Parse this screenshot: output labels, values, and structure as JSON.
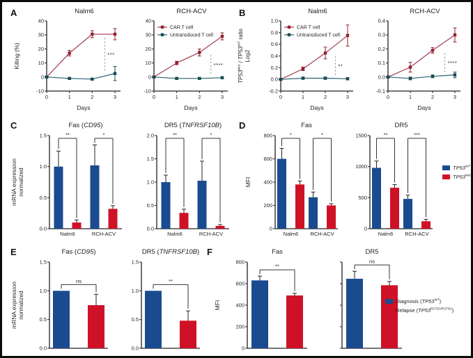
{
  "figure": {
    "background": "#ffffff",
    "border_color": "#0c0c0c"
  },
  "colors": {
    "car_line": "#a23a4e",
    "car_marker": "#96202f",
    "ut_line": "#27616f",
    "ut_marker": "#1a4a57",
    "bar_blue": "#1a4b8f",
    "bar_red": "#cf1127",
    "axis": "#231f20",
    "sig_dash": "#9a9a9a"
  },
  "panels": {
    "A": {
      "label": "A",
      "ylabel": "Killing (%)"
    },
    "B": {
      "label": "B",
      "ylabel": "*TP53*^{Mut} / *TP53*^{WT} ratio\nLog2"
    },
    "C": {
      "label": "C",
      "ylabel": "mRNA expression\nnormalized"
    },
    "D": {
      "label": "D",
      "ylabel": "MFI",
      "legend": {
        "items": [
          {
            "color_key": "bar_blue",
            "label": "*TP53*^{WT}"
          },
          {
            "color_key": "bar_red",
            "label": "*TP53*^{Mut}"
          }
        ]
      }
    },
    "E": {
      "label": "E",
      "ylabel": "mRNA expression\nnormalized"
    },
    "F": {
      "label": "F",
      "ylabel": "MFI",
      "legend": {
        "items": [
          {
            "color_key": "bar_blue",
            "label": "Diagnosis (*TP53*^{WT})"
          },
          {
            "color_key": "bar_red",
            "label": "Relapse (*TP53*^{R273G/R273G})"
          }
        ]
      }
    }
  },
  "chart_data": [
    {
      "panel": "A",
      "type": "line",
      "title": "Nalm6",
      "xlabel": "Days",
      "x": [
        0,
        1,
        2,
        3
      ],
      "xtick_labels": [
        "0",
        "1",
        "2",
        "3"
      ],
      "ylim": [
        -10,
        40
      ],
      "ytick_vals": [
        -10,
        0,
        10,
        20,
        30,
        40
      ],
      "ytick_labels": [
        "-10",
        "0",
        "10",
        "20",
        "30",
        "40"
      ],
      "legend": false,
      "series": [
        {
          "name": "CAR T cell",
          "color_key": "car",
          "values": [
            0,
            17,
            30.5,
            30.5
          ],
          "errors": [
            0.5,
            2,
            2.5,
            4
          ]
        },
        {
          "name": "Untransduced T cell",
          "color_key": "ut",
          "values": [
            0,
            -1,
            -1.5,
            2.5
          ],
          "errors": [
            0.3,
            0.6,
            0.6,
            5
          ]
        }
      ],
      "sig": {
        "x": 2.55,
        "y_top": 28,
        "y_bottom": 4,
        "label": "***"
      }
    },
    {
      "panel": "A",
      "type": "line",
      "title": "RCH-ACV",
      "xlabel": "Days",
      "x": [
        0,
        1,
        2,
        3
      ],
      "xtick_labels": [
        "0",
        "1",
        "2",
        "3"
      ],
      "ylim": [
        -10,
        40
      ],
      "ytick_vals": [
        -10,
        0,
        10,
        20,
        30,
        40
      ],
      "ytick_labels": [
        "-10",
        "0",
        "10",
        "20",
        "30",
        "40"
      ],
      "legend": true,
      "series": [
        {
          "name": "CAR T cell",
          "color_key": "car",
          "values": [
            0,
            10,
            17.5,
            29
          ],
          "errors": [
            0.5,
            1.2,
            2.5,
            2.5
          ]
        },
        {
          "name": "Untransduced T cell",
          "color_key": "ut",
          "values": [
            0,
            -1,
            -1,
            -0.5
          ],
          "errors": [
            0.3,
            0.5,
            0.5,
            0.8
          ]
        }
      ],
      "sig": {
        "x": 2.5,
        "y_top": 16,
        "y_bottom": 1,
        "label": "****"
      }
    },
    {
      "panel": "B",
      "type": "line",
      "title": "Nalm6",
      "xlabel": "Days",
      "x": [
        0,
        1,
        2,
        3
      ],
      "xtick_labels": [
        "0",
        "1",
        "2",
        "3"
      ],
      "ylim": [
        -0.2,
        1.0
      ],
      "ytick_vals": [
        -0.2,
        0.0,
        0.2,
        0.4,
        0.6,
        0.8,
        1.0
      ],
      "ytick_labels": [
        "-0.2",
        "0.0",
        "0.2",
        "0.4",
        "0.6",
        "0.8",
        "1.0"
      ],
      "legend": true,
      "series": [
        {
          "name": "CAR T cell",
          "color_key": "car",
          "values": [
            0,
            0.18,
            0.45,
            0.75
          ],
          "errors": [
            0.01,
            0.03,
            0.1,
            0.18
          ]
        },
        {
          "name": "Untransduced T cell",
          "color_key": "ut",
          "values": [
            0,
            0.02,
            0.02,
            0.01
          ],
          "errors": [
            0.005,
            0.02,
            0.02,
            0.02
          ]
        }
      ],
      "sig": {
        "x": 2.45,
        "y_top": 0.4,
        "y_bottom": 0.06,
        "label": "**"
      }
    },
    {
      "panel": "B",
      "type": "line",
      "title": "RCH-ACV",
      "xlabel": "Days",
      "x": [
        0,
        1,
        2,
        3
      ],
      "xtick_labels": [
        "0",
        "1",
        "2",
        "3"
      ],
      "ylim": [
        -0.1,
        0.4
      ],
      "ytick_vals": [
        -0.1,
        0.0,
        0.1,
        0.2,
        0.3,
        0.4
      ],
      "ytick_labels": [
        "-0.1",
        "0.0",
        "0.1",
        "0.2",
        "0.3",
        "0.4"
      ],
      "legend": false,
      "series": [
        {
          "name": "CAR T cell",
          "color_key": "car",
          "values": [
            0,
            0.07,
            0.19,
            0.3
          ],
          "errors": [
            0.005,
            0.035,
            0.02,
            0.05
          ]
        },
        {
          "name": "Untransduced T cell",
          "color_key": "ut",
          "values": [
            0,
            -0.01,
            0.005,
            0.015
          ],
          "errors": [
            0.005,
            0.01,
            0.01,
            0.02
          ]
        }
      ],
      "sig": {
        "x": 2.55,
        "y_top": 0.17,
        "y_bottom": 0.03,
        "label": "****"
      }
    },
    {
      "panel": "C",
      "type": "bar",
      "title": "Fas (*CD95*)",
      "categories": [
        "Nalm6",
        "RCH-ACV"
      ],
      "ylim": [
        0,
        1.5
      ],
      "ytick_vals": [
        0.0,
        0.5,
        1.0,
        1.5
      ],
      "ytick_labels": [
        "0.0",
        "0.5",
        "1.0",
        "1.5"
      ],
      "series": [
        {
          "color_key": "bar_blue",
          "values": [
            1.0,
            1.02
          ],
          "errors": [
            0.25,
            0.33
          ]
        },
        {
          "color_key": "bar_red",
          "values": [
            0.1,
            0.32
          ],
          "errors": [
            0.04,
            0.05
          ]
        }
      ],
      "sig": [
        {
          "label": "**"
        },
        {
          "label": "*"
        }
      ]
    },
    {
      "panel": "C",
      "type": "bar",
      "title": "DR5 (*TNFRSF10B*)",
      "categories": [
        "Nalm6",
        "RCH-ACV"
      ],
      "ylim": [
        0,
        2.0
      ],
      "ytick_vals": [
        0.0,
        0.5,
        1.0,
        1.5,
        2.0
      ],
      "ytick_labels": [
        "0.0",
        "0.5",
        "1.0",
        "1.5",
        "2.0"
      ],
      "series": [
        {
          "color_key": "bar_blue",
          "values": [
            1.0,
            1.03
          ],
          "errors": [
            0.15,
            0.42
          ]
        },
        {
          "color_key": "bar_red",
          "values": [
            0.34,
            0.06
          ],
          "errors": [
            0.08,
            0.03
          ]
        }
      ],
      "sig": [
        {
          "label": "**"
        },
        {
          "label": "*"
        }
      ]
    },
    {
      "panel": "D",
      "type": "bar",
      "title": "Fas",
      "categories": [
        "Nalm6",
        "RCH-ACV"
      ],
      "ylim": [
        0,
        800
      ],
      "ytick_vals": [
        0,
        200,
        400,
        600,
        800
      ],
      "ytick_labels": [
        "0",
        "200",
        "400",
        "600",
        "800"
      ],
      "series": [
        {
          "color_key": "bar_blue",
          "values": [
            600,
            270
          ],
          "errors": [
            90,
            45
          ]
        },
        {
          "color_key": "bar_red",
          "values": [
            380,
            200
          ],
          "errors": [
            30,
            15
          ]
        }
      ],
      "sig": [
        {
          "label": "*"
        },
        {
          "label": "*"
        }
      ]
    },
    {
      "panel": "D",
      "type": "bar",
      "title": "DR5",
      "categories": [
        "Nalm6",
        "RCH-ACV"
      ],
      "ylim": [
        0,
        1500
      ],
      "ytick_vals": [
        0,
        500,
        1000,
        1500
      ],
      "ytick_labels": [
        "0",
        "500",
        "1000",
        "1500"
      ],
      "series": [
        {
          "color_key": "bar_blue",
          "values": [
            980,
            480
          ],
          "errors": [
            110,
            60
          ]
        },
        {
          "color_key": "bar_red",
          "values": [
            660,
            120
          ],
          "errors": [
            50,
            30
          ]
        }
      ],
      "sig": [
        {
          "label": "**"
        },
        {
          "label": "***"
        }
      ]
    },
    {
      "panel": "E",
      "type": "bar",
      "title": "Fas (*CD95*)",
      "categories": null,
      "ylim": [
        0,
        1.5
      ],
      "ytick_vals": [
        0.0,
        0.5,
        1.0,
        1.5
      ],
      "ytick_labels": [
        "0.0",
        "0.5",
        "1.0",
        "1.5"
      ],
      "series": [
        {
          "color_key": "bar_blue",
          "values": [
            1.0
          ],
          "errors": [
            0
          ]
        },
        {
          "color_key": "bar_red",
          "values": [
            0.75
          ],
          "errors": [
            0.19
          ]
        }
      ],
      "sig": [
        {
          "label": "ns"
        }
      ]
    },
    {
      "panel": "E",
      "type": "bar",
      "title": "DR5 (*TNFRSF10B*)",
      "categories": null,
      "ylim": [
        0,
        1.5
      ],
      "ytick_vals": [
        0.0,
        0.5,
        1.0,
        1.5
      ],
      "ytick_labels": [
        "0.0",
        "0.5",
        "1.0",
        "1.5"
      ],
      "series": [
        {
          "color_key": "bar_blue",
          "values": [
            1.0
          ],
          "errors": [
            0
          ]
        },
        {
          "color_key": "bar_red",
          "values": [
            0.48
          ],
          "errors": [
            0.17
          ]
        }
      ],
      "sig": [
        {
          "label": "**"
        }
      ]
    },
    {
      "panel": "F",
      "type": "bar",
      "title": "Fas",
      "categories": null,
      "ylim": [
        0,
        800
      ],
      "ytick_vals": [
        0,
        200,
        400,
        600,
        800
      ],
      "ytick_labels": [
        "0",
        "200",
        "400",
        "600",
        "800"
      ],
      "series": [
        {
          "color_key": "bar_blue",
          "values": [
            630
          ],
          "errors": [
            40
          ]
        },
        {
          "color_key": "bar_red",
          "values": [
            490
          ],
          "errors": [
            20
          ]
        }
      ],
      "sig": [
        {
          "label": "**"
        }
      ]
    },
    {
      "panel": "F",
      "type": "bar",
      "title": "DR5",
      "categories": null,
      "ylim": [
        0,
        800
      ],
      "ytick_vals": [
        0,
        200,
        400,
        600,
        800
      ],
      "ytick_labels": [],
      "series": [
        {
          "color_key": "bar_blue",
          "values": [
            645
          ],
          "errors": [
            70
          ]
        },
        {
          "color_key": "bar_red",
          "values": [
            585
          ],
          "errors": [
            35
          ]
        }
      ],
      "sig": [
        {
          "label": "ns"
        }
      ]
    }
  ]
}
